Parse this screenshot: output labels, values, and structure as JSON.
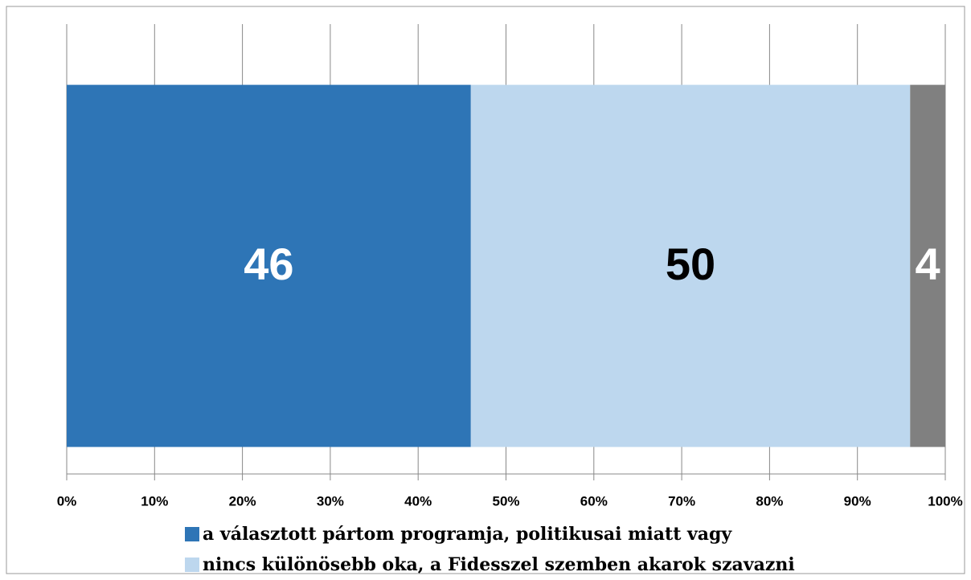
{
  "chart_data": {
    "type": "stacked_bar_horizontal",
    "categories": [
      null
    ],
    "series": [
      {
        "name": "a választott pártom programja, politikusai miatt vagy",
        "color": "#2e75b6",
        "values": [
          46
        ]
      },
      {
        "name": "nincs különösebb oka, a Fidesszel szemben akarok szavazni",
        "color": "#bdd7ee",
        "values": [
          50
        ]
      },
      {
        "color": "#808080",
        "values": [
          4
        ]
      }
    ],
    "xlim": [
      0,
      100
    ],
    "xticks": [
      {
        "value": 0,
        "label": "0%"
      },
      {
        "value": 10,
        "label": "10%"
      },
      {
        "value": 20,
        "label": "20%"
      },
      {
        "value": 30,
        "label": "30%"
      },
      {
        "value": 40,
        "label": "40%"
      },
      {
        "value": 50,
        "label": "50%"
      },
      {
        "value": 60,
        "label": "60%"
      },
      {
        "value": 70,
        "label": "70%"
      },
      {
        "value": 80,
        "label": "80%"
      },
      {
        "value": 90,
        "label": "90%"
      },
      {
        "value": 100,
        "label": "100%"
      }
    ],
    "grid": true,
    "legend": "bottom"
  }
}
